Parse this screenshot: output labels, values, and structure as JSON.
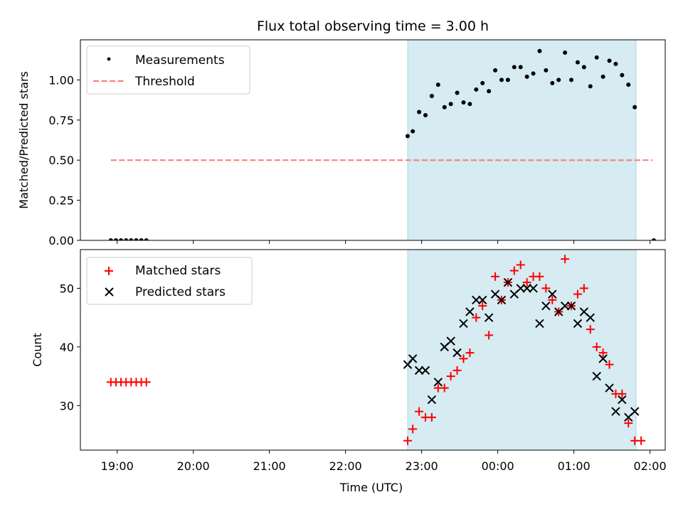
{
  "title": "Flux total observing time = 3.00 h",
  "chart_data": [
    {
      "type": "scatter",
      "ylabel": "Matched/Predicted stars",
      "xlim": [
        "18:31",
        "02:12"
      ],
      "ylim": [
        0,
        1.25
      ],
      "yticks": [
        "0.00",
        "0.25",
        "0.50",
        "0.75",
        "1.00"
      ],
      "ytick_values": [
        0,
        0.25,
        0.5,
        0.75,
        1.0
      ],
      "legend": "top-left",
      "highlight_span": {
        "start": "22:49",
        "end": "01:49",
        "color": "#add8e6"
      },
      "threshold": {
        "name": "Threshold",
        "value": 0.5,
        "x_range": [
          "18:55",
          "02:02"
        ],
        "color": "#ff7777"
      },
      "measurements": {
        "name": "Measurements",
        "color": "#000000",
        "x": [
          "18:55",
          "18:59",
          "19:03",
          "19:07",
          "19:11",
          "19:15",
          "19:19",
          "19:23",
          "22:49",
          "22:53",
          "22:58",
          "23:03",
          "23:08",
          "23:13",
          "23:18",
          "23:23",
          "23:28",
          "23:33",
          "23:38",
          "23:43",
          "23:48",
          "23:53",
          "23:58",
          "00:03",
          "00:08",
          "00:13",
          "00:18",
          "00:23",
          "00:28",
          "00:33",
          "00:38",
          "00:43",
          "00:48",
          "00:53",
          "00:58",
          "01:03",
          "01:08",
          "01:13",
          "01:18",
          "01:23",
          "01:28",
          "01:33",
          "01:38",
          "01:43",
          "01:48",
          "02:03"
        ],
        "y": [
          0,
          0,
          0,
          0,
          0,
          0,
          0,
          0,
          0.65,
          0.68,
          0.8,
          0.78,
          0.9,
          0.97,
          0.83,
          0.85,
          0.92,
          0.86,
          0.85,
          0.94,
          0.98,
          0.93,
          1.06,
          1.0,
          1.0,
          1.08,
          1.08,
          1.02,
          1.04,
          1.18,
          1.06,
          0.98,
          1.0,
          1.17,
          1.0,
          1.11,
          1.08,
          0.96,
          1.14,
          1.02,
          1.12,
          1.1,
          1.03,
          0.97,
          0.83,
          0
        ]
      }
    },
    {
      "type": "scatter",
      "xlabel": "Time (UTC)",
      "ylabel": "Count",
      "xlim": [
        "18:31",
        "02:12"
      ],
      "ylim": [
        22.4,
        56.6
      ],
      "xticks": [
        "19:00",
        "20:00",
        "21:00",
        "22:00",
        "23:00",
        "00:00",
        "01:00",
        "02:00"
      ],
      "yticks": [
        "30",
        "40",
        "50"
      ],
      "ytick_values": [
        30,
        40,
        50
      ],
      "legend": "top-left",
      "highlight_span": {
        "start": "22:49",
        "end": "01:49",
        "color": "#add8e6"
      },
      "series": [
        {
          "name": "Matched stars",
          "marker": "plus",
          "color": "#ff0000",
          "x": [
            "18:55",
            "18:59",
            "19:03",
            "19:07",
            "19:11",
            "19:15",
            "19:19",
            "19:23",
            "22:49",
            "22:53",
            "22:58",
            "23:03",
            "23:08",
            "23:13",
            "23:18",
            "23:23",
            "23:28",
            "23:33",
            "23:38",
            "23:43",
            "23:48",
            "23:53",
            "23:58",
            "00:03",
            "00:08",
            "00:13",
            "00:18",
            "00:23",
            "00:28",
            "00:33",
            "00:38",
            "00:43",
            "00:48",
            "00:53",
            "00:58",
            "01:03",
            "01:08",
            "01:13",
            "01:18",
            "01:23",
            "01:28",
            "01:33",
            "01:38",
            "01:43",
            "01:48",
            "01:53"
          ],
          "y": [
            34,
            34,
            34,
            34,
            34,
            34,
            34,
            34,
            24,
            26,
            29,
            28,
            28,
            33,
            33,
            35,
            36,
            38,
            39,
            45,
            47,
            42,
            52,
            48,
            51,
            53,
            54,
            51,
            52,
            52,
            50,
            48,
            46,
            55,
            47,
            49,
            50,
            43,
            40,
            39,
            37,
            32,
            32,
            27,
            24,
            24
          ]
        },
        {
          "name": "Predicted stars",
          "marker": "x",
          "color": "#000000",
          "x": [
            "22:49",
            "22:53",
            "22:58",
            "23:03",
            "23:08",
            "23:13",
            "23:18",
            "23:23",
            "23:28",
            "23:33",
            "23:38",
            "23:43",
            "23:48",
            "23:53",
            "23:58",
            "00:03",
            "00:08",
            "00:13",
            "00:18",
            "00:23",
            "00:28",
            "00:33",
            "00:38",
            "00:43",
            "00:48",
            "00:53",
            "00:58",
            "01:03",
            "01:08",
            "01:13",
            "01:18",
            "01:23",
            "01:28",
            "01:33",
            "01:38",
            "01:43",
            "01:48"
          ],
          "y": [
            37,
            38,
            36,
            36,
            31,
            34,
            40,
            41,
            39,
            44,
            46,
            48,
            48,
            45,
            49,
            48,
            51,
            49,
            50,
            50,
            50,
            44,
            47,
            49,
            46,
            47,
            47,
            44,
            46,
            45,
            35,
            38,
            33,
            29,
            31,
            28,
            29
          ]
        }
      ]
    }
  ]
}
